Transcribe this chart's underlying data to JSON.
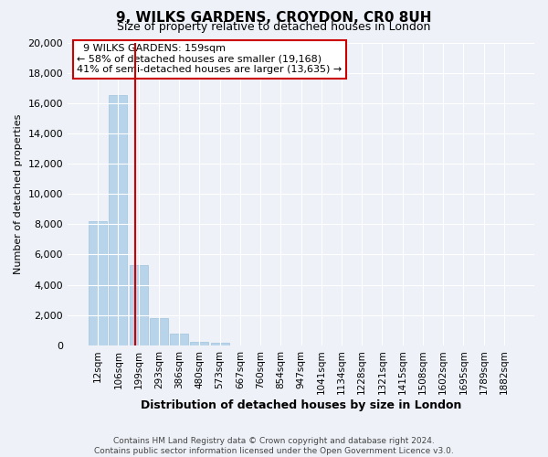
{
  "title": "9, WILKS GARDENS, CROYDON, CR0 8UH",
  "subtitle": "Size of property relative to detached houses in London",
  "xlabel": "Distribution of detached houses by size in London",
  "ylabel": "Number of detached properties",
  "categories": [
    "12sqm",
    "106sqm",
    "199sqm",
    "293sqm",
    "386sqm",
    "480sqm",
    "573sqm",
    "667sqm",
    "760sqm",
    "854sqm",
    "947sqm",
    "1041sqm",
    "1134sqm",
    "1228sqm",
    "1321sqm",
    "1415sqm",
    "1508sqm",
    "1602sqm",
    "1695sqm",
    "1789sqm",
    "1882sqm"
  ],
  "values": [
    8200,
    16500,
    5300,
    1800,
    750,
    250,
    200,
    0,
    0,
    0,
    0,
    0,
    0,
    0,
    0,
    0,
    0,
    0,
    0,
    0,
    0
  ],
  "bar_color": "#b8d4ea",
  "bar_edge_color": "#9fc4de",
  "vline_color": "#cc0000",
  "ylim": [
    0,
    20000
  ],
  "yticks": [
    0,
    2000,
    4000,
    6000,
    8000,
    10000,
    12000,
    14000,
    16000,
    18000,
    20000
  ],
  "annotation_title": "9 WILKS GARDENS: 159sqm",
  "annotation_line1": "← 58% of detached houses are smaller (19,168)",
  "annotation_line2": "41% of semi-detached houses are larger (13,635) →",
  "box_facecolor": "#ffffff",
  "box_edgecolor": "#cc0000",
  "footer1": "Contains HM Land Registry data © Crown copyright and database right 2024.",
  "footer2": "Contains public sector information licensed under the Open Government Licence v3.0.",
  "background_color": "#eef2f8"
}
